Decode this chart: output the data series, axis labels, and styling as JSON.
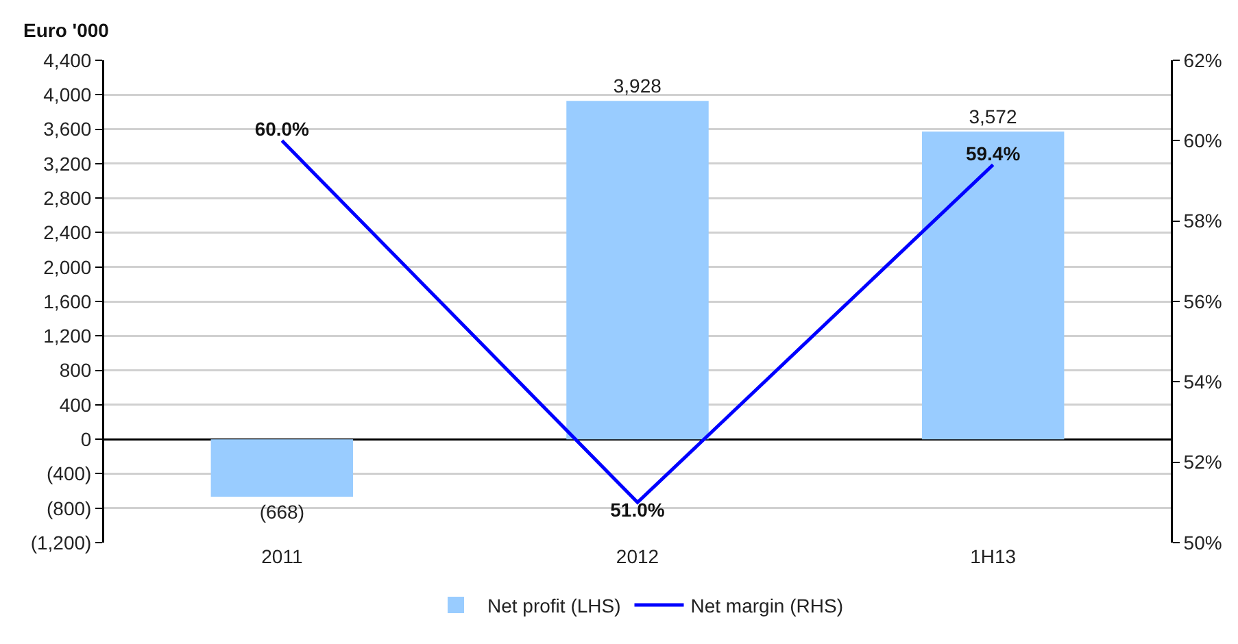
{
  "chart_data": {
    "type": "bar",
    "ylabel": "Euro '000",
    "categories": [
      "2011",
      "2012",
      "1H13"
    ],
    "series": [
      {
        "name": "Net profit (LHS)",
        "color": "#99ccff",
        "values": [
          -668,
          3928,
          3572
        ],
        "value_labels": [
          "(668)",
          "3,928",
          "3,572"
        ]
      },
      {
        "name": "Net margin (RHS)",
        "type": "line",
        "axis": "y2",
        "color": "#0000ff",
        "values": [
          60.0,
          51.0,
          59.4
        ],
        "value_labels": [
          "60.0%",
          "51.0%",
          "59.4%"
        ]
      }
    ],
    "ylim": [
      -1200,
      4400
    ],
    "yticks": [
      {
        "value": -1200,
        "label": "(1,200)"
      },
      {
        "value": -800,
        "label": "(800)"
      },
      {
        "value": -400,
        "label": "(400)"
      },
      0,
      400,
      800,
      {
        "value": 1200,
        "label": "1,200"
      },
      {
        "value": 1600,
        "label": "1,600"
      },
      {
        "value": 2000,
        "label": "2,000"
      },
      {
        "value": 2400,
        "label": "2,400"
      },
      {
        "value": 2800,
        "label": "2,800"
      },
      {
        "value": 3200,
        "label": "3,200"
      },
      {
        "value": 3600,
        "label": "3,600"
      },
      {
        "value": 4000,
        "label": "4,000"
      },
      {
        "value": 4400,
        "label": "4,400"
      }
    ],
    "y2lim": [
      50,
      62
    ],
    "y2ticks": [
      {
        "value": 50,
        "label": "50%"
      },
      {
        "value": 52,
        "label": "52%"
      },
      {
        "value": 54,
        "label": "54%"
      },
      {
        "value": 56,
        "label": "56%"
      },
      {
        "value": 58,
        "label": "58%"
      },
      {
        "value": 60,
        "label": "60%"
      },
      {
        "value": 62,
        "label": "62%"
      }
    ],
    "grid": "y",
    "legend": "bottom",
    "marker": "none",
    "line_style": "solid"
  }
}
